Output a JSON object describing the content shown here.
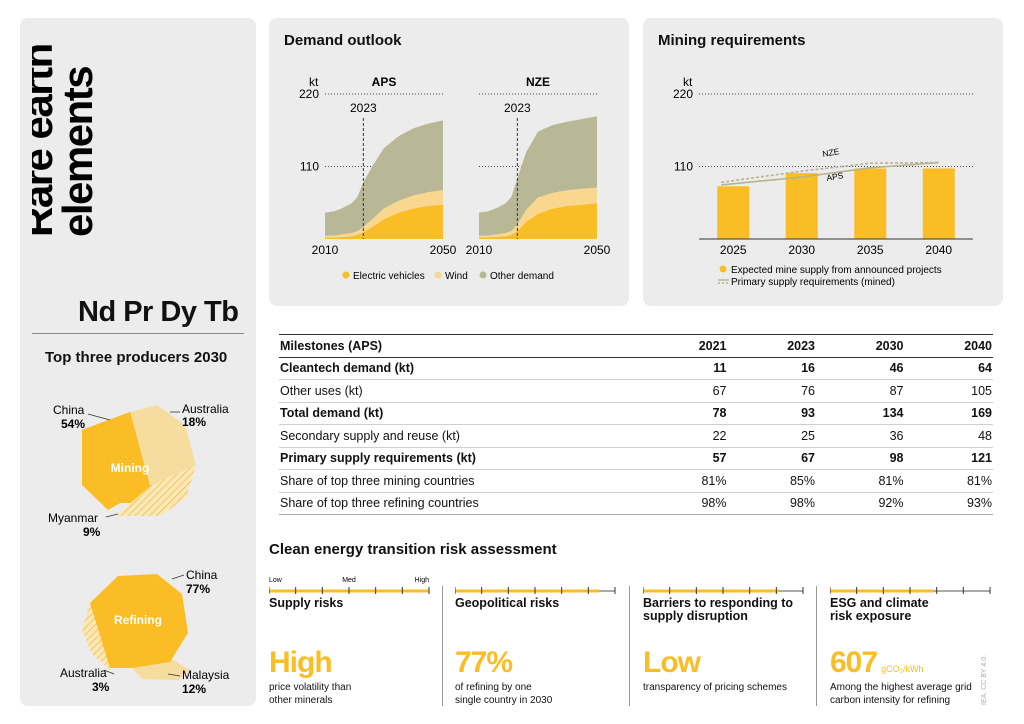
{
  "title_line1": "Rare earth",
  "title_line2": "elements",
  "element_symbols": "Nd Pr Dy Tb",
  "producers": {
    "title": "Top three producers 2030",
    "mining": {
      "center_label": "Mining",
      "slices": [
        {
          "country": "China",
          "share": "54%",
          "value": 54
        },
        {
          "country": "Australia",
          "share": "18%",
          "value": 18
        },
        {
          "country": "Myanmar",
          "share": "9%",
          "value": 9
        }
      ]
    },
    "refining": {
      "center_label": "Refining",
      "slices": [
        {
          "country": "China",
          "share": "77%",
          "value": 77
        },
        {
          "country": "Malaysia",
          "share": "12%",
          "value": 12
        },
        {
          "country": "Australia",
          "share": "3%",
          "value": 3
        }
      ]
    }
  },
  "colors": {
    "ev": "#fbbd25",
    "wind": "#f9d78e",
    "other": "#b9b896",
    "panel": "#ececec",
    "light_slice": "#f7dca0",
    "pale_slice": "#f3ead2"
  },
  "chart_data": [
    {
      "type": "area",
      "title": "Demand outlook",
      "unit": "kt",
      "ylim": [
        0,
        220
      ],
      "yticks": [
        110,
        220
      ],
      "marker_year": "2023",
      "xticks": [
        "2010",
        "2050"
      ],
      "legend": [
        "Electric vehicles",
        "Wind",
        "Other demand"
      ],
      "panels": [
        {
          "name": "APS",
          "x": [
            2010,
            2013,
            2016,
            2019,
            2021,
            2023,
            2026,
            2030,
            2035,
            2040,
            2045,
            2050
          ],
          "series": [
            {
              "name": "Electric vehicles",
              "values": [
                2,
                2,
                3,
                4,
                6,
                10,
                18,
                30,
                40,
                46,
                50,
                52
              ]
            },
            {
              "name": "Wind",
              "values": [
                3,
                3,
                4,
                5,
                6,
                8,
                12,
                16,
                18,
                20,
                21,
                22
              ]
            },
            {
              "name": "Other demand",
              "values": [
                35,
                37,
                40,
                45,
                52,
                68,
                80,
                92,
                98,
                102,
                104,
                106
              ]
            }
          ]
        },
        {
          "name": "NZE",
          "x": [
            2010,
            2013,
            2016,
            2019,
            2021,
            2023,
            2026,
            2030,
            2035,
            2040,
            2045,
            2050
          ],
          "series": [
            {
              "name": "Electric vehicles",
              "values": [
                2,
                2,
                3,
                4,
                6,
                12,
                26,
                38,
                46,
                50,
                52,
                54
              ]
            },
            {
              "name": "Wind",
              "values": [
                3,
                3,
                4,
                5,
                6,
                10,
                18,
                25,
                24,
                24,
                24,
                24
              ]
            },
            {
              "name": "Other demand",
              "values": [
                35,
                37,
                40,
                45,
                52,
                70,
                88,
                100,
                103,
                104,
                106,
                108
              ]
            }
          ]
        }
      ]
    },
    {
      "type": "bar",
      "title": "Mining requirements",
      "unit": "kt",
      "ylim": [
        0,
        220
      ],
      "yticks": [
        110,
        220
      ],
      "categories": [
        "2025",
        "2030",
        "2035",
        "2040"
      ],
      "values": [
        80,
        100,
        107,
        107
      ],
      "lines": [
        {
          "name": "APS",
          "x": [
            2025,
            2030,
            2035,
            2040
          ],
          "values": [
            82,
            94,
            108,
            116
          ]
        },
        {
          "name": "NZE",
          "x": [
            2025,
            2030,
            2035,
            2040
          ],
          "values": [
            86,
            103,
            115,
            116
          ]
        }
      ],
      "legend": [
        "Expected mine supply from announced projects",
        "Primary supply requirements (mined)"
      ]
    }
  ],
  "milestones": {
    "header": [
      "Milestones (APS)",
      "2021",
      "2023",
      "2030",
      "2040"
    ],
    "rows": [
      {
        "bold": true,
        "cells": [
          "Cleantech demand (kt)",
          "11",
          "16",
          "46",
          "64"
        ]
      },
      {
        "bold": false,
        "cells": [
          "Other uses (kt)",
          "67",
          "76",
          "87",
          "105"
        ]
      },
      {
        "bold": true,
        "cells": [
          "Total demand (kt)",
          "78",
          "93",
          "134",
          "169"
        ]
      },
      {
        "bold": false,
        "cells": [
          "Secondary supply and reuse (kt)",
          "22",
          "25",
          "36",
          "48"
        ]
      },
      {
        "bold": true,
        "cells": [
          "Primary supply requirements (kt)",
          "57",
          "67",
          "98",
          "121"
        ]
      },
      {
        "bold": false,
        "cells": [
          "Share of top three mining countries",
          "81%",
          "85%",
          "81%",
          "81%"
        ]
      },
      {
        "bold": false,
        "cells": [
          "Share of top three refining countries",
          "98%",
          "98%",
          "92%",
          "93%"
        ]
      }
    ]
  },
  "risk": {
    "title": "Clean energy transition risk assessment",
    "scale_labels": [
      "Low",
      "Med",
      "High"
    ],
    "items": [
      {
        "label": "Supply risks",
        "level": 1.0,
        "big": "High",
        "unit": "",
        "desc": [
          "price volatility than",
          "other minerals"
        ]
      },
      {
        "label": "Geopolitical risks",
        "level": 0.9,
        "big": "77%",
        "unit": "",
        "desc": [
          "of refining by one",
          "single country in 2030"
        ]
      },
      {
        "label": "Barriers to responding to supply disruption",
        "label_lines": [
          "Barriers to responding to",
          "supply disruption"
        ],
        "level": 0.85,
        "big": "Low",
        "unit": "",
        "desc": [
          "transparency of pricing schemes"
        ]
      },
      {
        "label": "ESG and climate risk exposure",
        "label_lines": [
          "ESG and climate",
          "risk exposure"
        ],
        "level": 0.65,
        "big": "607",
        "unit": "gCO₂/kWh",
        "desc": [
          "Among the highest average grid",
          "carbon intensity for refining"
        ]
      }
    ]
  },
  "credit": "IEA. CC BY 4.0."
}
